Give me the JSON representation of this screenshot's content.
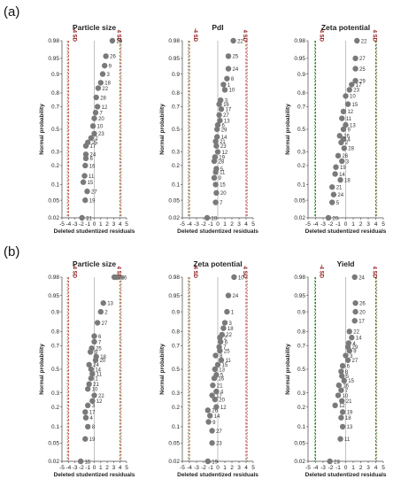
{
  "panels": [
    {
      "label": "(a)",
      "plots": [
        0,
        1,
        2
      ]
    },
    {
      "label": "(b)",
      "plots": [
        3,
        4,
        5
      ]
    }
  ],
  "colors": {
    "points": "#7a7a7a",
    "sd_lines": "#cc2222",
    "sd_lines_outer": "#2e8b2e",
    "zero_line": "#999999"
  },
  "chart_data": [
    {
      "type": "scatter",
      "title": "Particle size",
      "xlabel": "Deleted studentized residuals",
      "ylabel": "Normal probability",
      "xlim": [
        -5,
        5
      ],
      "xticks": [
        -5,
        -4,
        -3,
        -2,
        -1,
        0,
        1,
        2,
        3,
        4,
        5
      ],
      "yticks": [
        0.02,
        0.05,
        0.1,
        0.2,
        0.3,
        0.5,
        0.7,
        0.8,
        0.9,
        0.95,
        0.98
      ],
      "y_scale": "normal-probability",
      "reference_lines": [
        {
          "x": -4,
          "label": "-4 SD"
        },
        {
          "x": 4,
          "label": "4 SD"
        }
      ],
      "points": [
        {
          "run": "21",
          "x": -1.9,
          "p": 0.02
        },
        {
          "run": "19",
          "x": -1.4,
          "p": 0.05
        },
        {
          "run": "27",
          "x": -1.1,
          "p": 0.075
        },
        {
          "run": "15",
          "x": -1.7,
          "p": 0.11
        },
        {
          "run": "11",
          "x": -1.5,
          "p": 0.14
        },
        {
          "run": "16",
          "x": -1.4,
          "p": 0.2
        },
        {
          "run": "6",
          "x": -1.3,
          "p": 0.25
        },
        {
          "run": "24",
          "x": -1.3,
          "p": 0.28
        },
        {
          "run": "17",
          "x": -1.3,
          "p": 0.35
        },
        {
          "run": "25",
          "x": -1.0,
          "p": 0.38
        },
        {
          "run": "2",
          "x": -0.5,
          "p": 0.42
        },
        {
          "run": "23",
          "x": 0.0,
          "p": 0.46
        },
        {
          "run": "10",
          "x": -0.2,
          "p": 0.53
        },
        {
          "run": "20",
          "x": 0.0,
          "p": 0.6
        },
        {
          "run": "7",
          "x": 0.2,
          "p": 0.65
        },
        {
          "run": "12",
          "x": 0.5,
          "p": 0.7
        },
        {
          "run": "28",
          "x": 0.3,
          "p": 0.77
        },
        {
          "run": "22",
          "x": 0.6,
          "p": 0.83
        },
        {
          "run": "18",
          "x": 1.0,
          "p": 0.86
        },
        {
          "run": "3",
          "x": 1.3,
          "p": 0.9
        },
        {
          "run": "9",
          "x": 1.6,
          "p": 0.93
        },
        {
          "run": "26",
          "x": 1.8,
          "p": 0.955
        },
        {
          "run": "29",
          "x": 2.8,
          "p": 0.98
        }
      ]
    },
    {
      "type": "scatter",
      "title": "PdI",
      "xlabel": "Deleted studentized residuals",
      "ylabel": "Normal probability",
      "xlim": [
        -5,
        5
      ],
      "xticks": [
        -5,
        -4,
        -3,
        -2,
        -1,
        0,
        1,
        2,
        3,
        4,
        5
      ],
      "yticks": [
        0.02,
        0.05,
        0.1,
        0.2,
        0.3,
        0.5,
        0.7,
        0.8,
        0.9,
        0.95,
        0.98
      ],
      "y_scale": "normal-probability",
      "reference_lines": [
        {
          "x": -4,
          "label": "-4 SD"
        },
        {
          "x": 4,
          "label": "4 SD"
        }
      ],
      "points": [
        {
          "run": "18",
          "x": -1.5,
          "p": 0.02
        },
        {
          "run": "7",
          "x": -0.3,
          "p": 0.045
        },
        {
          "run": "20",
          "x": -0.2,
          "p": 0.07
        },
        {
          "run": "15",
          "x": -0.3,
          "p": 0.1
        },
        {
          "run": "9",
          "x": -0.5,
          "p": 0.13
        },
        {
          "run": "11",
          "x": -0.3,
          "p": 0.16
        },
        {
          "run": "5",
          "x": -0.2,
          "p": 0.18
        },
        {
          "run": "28",
          "x": -0.5,
          "p": 0.23
        },
        {
          "run": "19",
          "x": -0.4,
          "p": 0.26
        },
        {
          "run": "12",
          "x": 0.0,
          "p": 0.3
        },
        {
          "run": "23",
          "x": -0.2,
          "p": 0.35
        },
        {
          "run": "21",
          "x": -0.3,
          "p": 0.39
        },
        {
          "run": "14",
          "x": -0.1,
          "p": 0.43
        },
        {
          "run": "29",
          "x": -0.1,
          "p": 0.5
        },
        {
          "run": "6",
          "x": 0.0,
          "p": 0.54
        },
        {
          "run": "13",
          "x": 0.3,
          "p": 0.58
        },
        {
          "run": "27",
          "x": 0.2,
          "p": 0.63
        },
        {
          "run": "17",
          "x": 0.5,
          "p": 0.68
        },
        {
          "run": "16",
          "x": 0.2,
          "p": 0.72
        },
        {
          "run": "3",
          "x": 0.4,
          "p": 0.75
        },
        {
          "run": "10",
          "x": 1.0,
          "p": 0.82
        },
        {
          "run": "1",
          "x": 0.8,
          "p": 0.85
        },
        {
          "run": "8",
          "x": 1.3,
          "p": 0.88
        },
        {
          "run": "24",
          "x": 1.5,
          "p": 0.92
        },
        {
          "run": "25",
          "x": 1.5,
          "p": 0.955
        },
        {
          "run": "22",
          "x": 2.2,
          "p": 0.98
        }
      ]
    },
    {
      "type": "scatter",
      "title": "Zeta potential",
      "xlabel": "Deleted studentized residuals",
      "ylabel": "Normal probability",
      "xlim": [
        -5,
        5
      ],
      "xticks": [
        -5,
        -4,
        -3,
        -2,
        -1,
        0,
        1,
        2,
        3,
        4,
        5
      ],
      "yticks": [
        0.02,
        0.05,
        0.1,
        0.2,
        0.3,
        0.5,
        0.7,
        0.8,
        0.9,
        0.95,
        0.98
      ],
      "y_scale": "normal-probability",
      "reference_lines": [
        {
          "x": -4,
          "label": "-4 SD"
        },
        {
          "x": 4,
          "label": "4 SD"
        }
      ],
      "points": [
        {
          "run": "20",
          "x": -2.3,
          "p": 0.02
        },
        {
          "run": "5",
          "x": -1.8,
          "p": 0.045
        },
        {
          "run": "24",
          "x": -1.6,
          "p": 0.065
        },
        {
          "run": "21",
          "x": -1.8,
          "p": 0.09
        },
        {
          "run": "18",
          "x": -0.7,
          "p": 0.12
        },
        {
          "run": "14",
          "x": -1.4,
          "p": 0.15
        },
        {
          "run": "19",
          "x": -1.3,
          "p": 0.19
        },
        {
          "run": "3",
          "x": -0.5,
          "p": 0.23
        },
        {
          "run": "26",
          "x": -1.0,
          "p": 0.27
        },
        {
          "run": "28",
          "x": -0.2,
          "p": 0.33
        },
        {
          "run": "2",
          "x": -0.6,
          "p": 0.38
        },
        {
          "run": "4",
          "x": -0.3,
          "p": 0.41
        },
        {
          "run": "16",
          "x": -0.8,
          "p": 0.44
        },
        {
          "run": "9",
          "x": -0.3,
          "p": 0.5
        },
        {
          "run": "13",
          "x": 0.0,
          "p": 0.54
        },
        {
          "run": "11",
          "x": -0.5,
          "p": 0.6
        },
        {
          "run": "12",
          "x": -0.3,
          "p": 0.66
        },
        {
          "run": "15",
          "x": 0.3,
          "p": 0.72
        },
        {
          "run": "10",
          "x": 0.0,
          "p": 0.78
        },
        {
          "run": "23",
          "x": 0.5,
          "p": 0.82
        },
        {
          "run": "17",
          "x": 0.8,
          "p": 0.85
        },
        {
          "run": "29",
          "x": 1.3,
          "p": 0.87
        },
        {
          "run": "25",
          "x": 1.3,
          "p": 0.92
        },
        {
          "run": "27",
          "x": 1.3,
          "p": 0.95
        },
        {
          "run": "22",
          "x": 1.5,
          "p": 0.98
        }
      ]
    },
    {
      "type": "scatter",
      "title": "Particle size",
      "xlabel": "Deleted studentized residuals",
      "ylabel": "Normal probability",
      "xlim": [
        -5,
        5
      ],
      "xticks": [
        -5,
        -4,
        -3,
        -2,
        -1,
        0,
        1,
        2,
        3,
        4,
        5
      ],
      "yticks": [
        0.02,
        0.05,
        0.1,
        0.2,
        0.3,
        0.5,
        0.7,
        0.8,
        0.9,
        0.95,
        0.98
      ],
      "y_scale": "normal-probability",
      "reference_lines": [
        {
          "x": -4,
          "label": "-4 SD"
        },
        {
          "x": 4,
          "label": "4 SD"
        }
      ],
      "points": [
        {
          "run": "15",
          "x": -2.1,
          "p": 0.02
        },
        {
          "run": "19",
          "x": -1.4,
          "p": 0.06
        },
        {
          "run": "8",
          "x": -1.0,
          "p": 0.1
        },
        {
          "run": "4",
          "x": -1.3,
          "p": 0.14
        },
        {
          "run": "17",
          "x": -1.4,
          "p": 0.17
        },
        {
          "run": "3",
          "x": -1.0,
          "p": 0.21
        },
        {
          "run": "12",
          "x": -0.3,
          "p": 0.24
        },
        {
          "run": "22",
          "x": 0.0,
          "p": 0.28
        },
        {
          "run": "10",
          "x": -1.0,
          "p": 0.33
        },
        {
          "run": "21",
          "x": -0.8,
          "p": 0.37
        },
        {
          "run": "1",
          "x": -0.5,
          "p": 0.42
        },
        {
          "run": "11",
          "x": -0.3,
          "p": 0.46
        },
        {
          "run": "14",
          "x": -0.5,
          "p": 0.5
        },
        {
          "run": "24",
          "x": -0.8,
          "p": 0.54
        },
        {
          "run": "20",
          "x": 0.2,
          "p": 0.58
        },
        {
          "run": "18",
          "x": 0.3,
          "p": 0.61
        },
        {
          "run": "9",
          "x": -0.6,
          "p": 0.65
        },
        {
          "run": "25",
          "x": -0.4,
          "p": 0.68
        },
        {
          "run": "7",
          "x": 0.0,
          "p": 0.73
        },
        {
          "run": "6",
          "x": 0.0,
          "p": 0.77
        },
        {
          "run": "27",
          "x": 0.5,
          "p": 0.85
        },
        {
          "run": "2",
          "x": 1.0,
          "p": 0.9
        },
        {
          "run": "13",
          "x": 1.4,
          "p": 0.93
        },
        {
          "run": "16",
          "x": 3.5,
          "p": 0.98
        },
        {
          "run": "28",
          "x": 3.1,
          "p": 0.98
        }
      ]
    },
    {
      "type": "scatter",
      "title": "Zeta potential",
      "xlabel": "Deleted studentized residuals",
      "ylabel": "Normal probability",
      "xlim": [
        -5,
        5
      ],
      "xticks": [
        -5,
        -4,
        -3,
        -2,
        -1,
        0,
        1,
        2,
        3,
        4,
        5
      ],
      "yticks": [
        0.02,
        0.05,
        0.1,
        0.2,
        0.3,
        0.5,
        0.7,
        0.8,
        0.9,
        0.95,
        0.98
      ],
      "y_scale": "normal-probability",
      "reference_lines": [
        {
          "x": -4,
          "label": "-4 SD"
        },
        {
          "x": 4,
          "label": "4 SD"
        }
      ],
      "points": [
        {
          "run": "19",
          "x": -1.4,
          "p": 0.02
        },
        {
          "run": "23",
          "x": -0.8,
          "p": 0.05
        },
        {
          "run": "27",
          "x": -0.8,
          "p": 0.085
        },
        {
          "run": "9",
          "x": -1.3,
          "p": 0.12
        },
        {
          "run": "14",
          "x": -1.1,
          "p": 0.15
        },
        {
          "run": "26",
          "x": -1.4,
          "p": 0.18
        },
        {
          "run": "12",
          "x": -0.2,
          "p": 0.2
        },
        {
          "run": "20",
          "x": -0.4,
          "p": 0.25
        },
        {
          "run": "17",
          "x": -0.8,
          "p": 0.28
        },
        {
          "run": "4",
          "x": -0.2,
          "p": 0.31
        },
        {
          "run": "21",
          "x": -0.7,
          "p": 0.36
        },
        {
          "run": "16",
          "x": -0.5,
          "p": 0.42
        },
        {
          "run": "5",
          "x": -0.2,
          "p": 0.45
        },
        {
          "run": "13",
          "x": -0.4,
          "p": 0.5
        },
        {
          "run": "15",
          "x": 0.0,
          "p": 0.54
        },
        {
          "run": "11",
          "x": 0.5,
          "p": 0.58
        },
        {
          "run": "8",
          "x": -0.3,
          "p": 0.62
        },
        {
          "run": "25",
          "x": 0.3,
          "p": 0.66
        },
        {
          "run": "7",
          "x": 0.2,
          "p": 0.69
        },
        {
          "run": "6",
          "x": 0.4,
          "p": 0.73
        },
        {
          "run": "2",
          "x": 0.3,
          "p": 0.76
        },
        {
          "run": "22",
          "x": 0.6,
          "p": 0.78
        },
        {
          "run": "18",
          "x": 0.8,
          "p": 0.82
        },
        {
          "run": "3",
          "x": 1.0,
          "p": 0.85
        },
        {
          "run": "1",
          "x": 1.3,
          "p": 0.9
        },
        {
          "run": "24",
          "x": 1.5,
          "p": 0.95
        },
        {
          "run": "10",
          "x": 2.3,
          "p": 0.98
        }
      ]
    },
    {
      "type": "scatter",
      "title": "Yield",
      "xlabel": "Deleted studentized residuals",
      "ylabel": "Normal probability",
      "xlim": [
        -5,
        5
      ],
      "xticks": [
        -5,
        -4,
        -3,
        -2,
        -1,
        0,
        1,
        2,
        3,
        4,
        5
      ],
      "yticks": [
        0.02,
        0.05,
        0.1,
        0.2,
        0.3,
        0.5,
        0.7,
        0.8,
        0.9,
        0.95,
        0.98
      ],
      "y_scale": "normal-probability",
      "reference_lines": [
        {
          "x": -4,
          "label": "-4 SD"
        },
        {
          "x": 4,
          "label": "4 SD"
        }
      ],
      "points": [
        {
          "run": "23",
          "x": -2.1,
          "p": 0.02
        },
        {
          "run": "11",
          "x": -0.7,
          "p": 0.06
        },
        {
          "run": "13",
          "x": -0.4,
          "p": 0.1
        },
        {
          "run": "18",
          "x": -0.6,
          "p": 0.14
        },
        {
          "run": "19",
          "x": -0.4,
          "p": 0.17
        },
        {
          "run": "12",
          "x": -1.4,
          "p": 0.21
        },
        {
          "run": "21",
          "x": -0.5,
          "p": 0.24
        },
        {
          "run": "10",
          "x": -1.0,
          "p": 0.28
        },
        {
          "run": "7",
          "x": -0.6,
          "p": 0.32
        },
        {
          "run": "16",
          "x": -0.9,
          "p": 0.36
        },
        {
          "run": "15",
          "x": -0.2,
          "p": 0.4
        },
        {
          "run": "5",
          "x": -0.5,
          "p": 0.44
        },
        {
          "run": "8",
          "x": -0.6,
          "p": 0.48
        },
        {
          "run": "6",
          "x": -0.4,
          "p": 0.53
        },
        {
          "run": "27",
          "x": 0.3,
          "p": 0.58
        },
        {
          "run": "3",
          "x": 0.0,
          "p": 0.62
        },
        {
          "run": "9",
          "x": 0.5,
          "p": 0.66
        },
        {
          "run": "29",
          "x": 0.3,
          "p": 0.69
        },
        {
          "run": "4",
          "x": 0.4,
          "p": 0.72
        },
        {
          "run": "14",
          "x": 0.8,
          "p": 0.76
        },
        {
          "run": "22",
          "x": 0.5,
          "p": 0.8
        },
        {
          "run": "17",
          "x": 1.2,
          "p": 0.86
        },
        {
          "run": "20",
          "x": 1.3,
          "p": 0.9
        },
        {
          "run": "26",
          "x": 1.3,
          "p": 0.93
        },
        {
          "run": "24",
          "x": 1.2,
          "p": 0.98
        }
      ]
    }
  ]
}
